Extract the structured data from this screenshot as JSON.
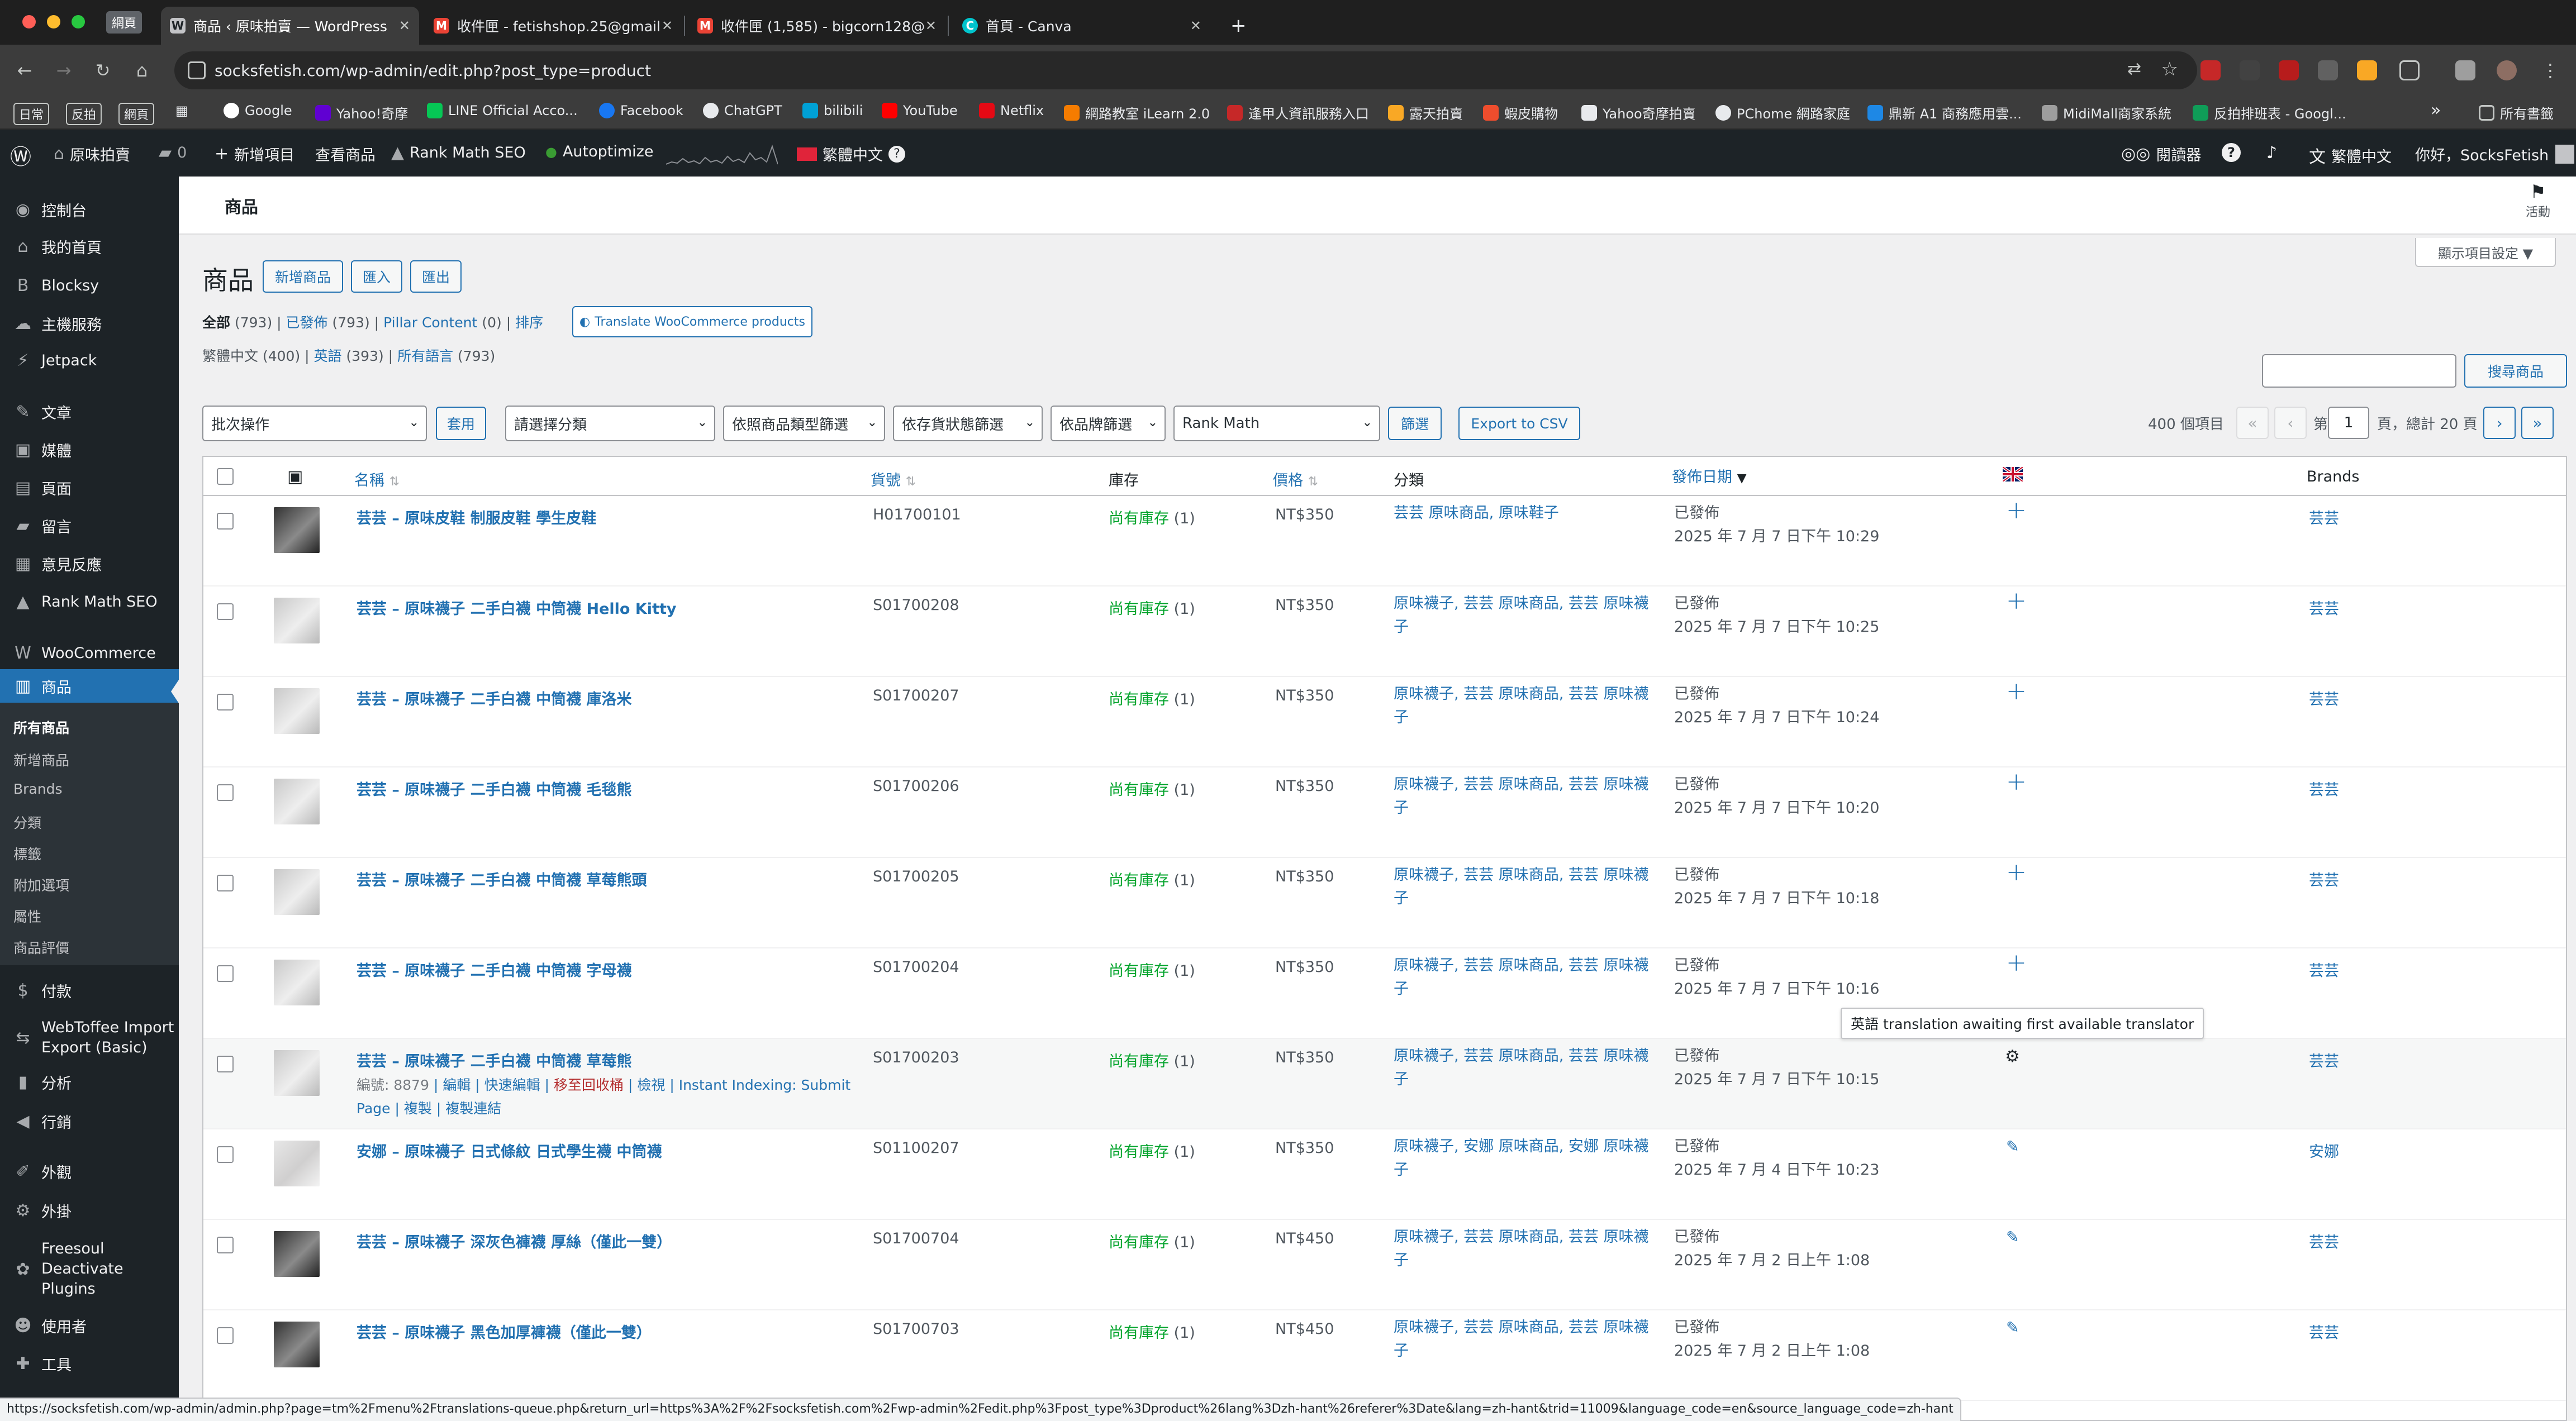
{
  "browser": {
    "traffic_colors": [
      "#ff5f57",
      "#febc2e",
      "#28c840"
    ],
    "profile_chip": "網頁",
    "tabs": [
      {
        "title": "商品 ‹ 原味拍賣 — WordPress",
        "active": true
      },
      {
        "title": "收件匣 - fetishshop.25@gmail",
        "active": false
      },
      {
        "title": "收件匣 (1,585) - bigcorn128@",
        "active": false
      },
      {
        "title": "首頁 - Canva",
        "active": false
      }
    ],
    "new_tab": "+",
    "url": "socksfetish.com/wp-admin/edit.php?post_type=product",
    "bookmark_chips": [
      "日常",
      "反拍",
      "網頁"
    ],
    "bookmarks": [
      "Google",
      "Yahoo!奇摩",
      "LINE Official Acco...",
      "Facebook",
      "ChatGPT",
      "bilibili",
      "YouTube",
      "Netflix",
      "網路教室 iLearn 2.0",
      "逢甲人資訊服務入口",
      "露天拍賣",
      "蝦皮購物",
      "Yahoo奇摩拍賣",
      "PChome 網路家庭",
      "鼎新 A1 商務應用雲...",
      "MidiMall商家系統",
      "反拍排班表 - Googl..."
    ],
    "bookmarks_more": "»",
    "all_bookmarks": "所有書籤",
    "status_url": "https://socksfetish.com/wp-admin/admin.php?page=tm%2Fmenu%2Ftranslations-queue.php&return_url=https%3A%2F%2Fsocksfetish.com%2Fwp-admin%2Fedit.php%3Fpost_type%3Dproduct%26lang%3Dzh-hant%26referer%3Date&lang=zh-hant&trid=11009&language_code=en&source_language_code=zh-hant"
  },
  "adminbar": {
    "site_name": "原味拍賣",
    "comments": "0",
    "new_item": "新增項目",
    "view_products": "查看商品",
    "rank_math": "Rank Math SEO",
    "autoptimize": "Autoptimize",
    "language": "繁體中文",
    "language_badge": "?",
    "reader": "閱讀器",
    "help": "?",
    "lang_right": "繁體中文",
    "greeting": "你好，SocksFetish"
  },
  "sidebar": {
    "items": [
      {
        "label": "控制台",
        "icon": "dashboard-icon",
        "glyph": "◉"
      },
      {
        "label": "我的首頁",
        "icon": "home-icon",
        "glyph": "⌂"
      },
      {
        "label": "Blocksy",
        "icon": "blocksy-icon",
        "glyph": "B"
      },
      {
        "label": "主機服務",
        "icon": "cloud-icon",
        "glyph": "☁"
      },
      {
        "label": "Jetpack",
        "icon": "jetpack-icon",
        "glyph": "⚡"
      },
      {
        "label": "文章",
        "icon": "pin-icon",
        "glyph": "✎"
      },
      {
        "label": "媒體",
        "icon": "media-icon",
        "glyph": "▣"
      },
      {
        "label": "頁面",
        "icon": "page-icon",
        "glyph": "▤"
      },
      {
        "label": "留言",
        "icon": "comment-icon",
        "glyph": "▰"
      },
      {
        "label": "意見反應",
        "icon": "feedback-icon",
        "glyph": "▦"
      },
      {
        "label": "Rank Math SEO",
        "icon": "rankmath-icon",
        "glyph": "▲"
      },
      {
        "label": "WooCommerce",
        "icon": "woocommerce-icon",
        "glyph": "W"
      },
      {
        "label": "商品",
        "icon": "product-icon",
        "glyph": "▥"
      },
      {
        "label": "付款",
        "icon": "payment-icon",
        "glyph": "$"
      },
      {
        "label": "WebToffee Import Export (Basic)",
        "icon": "import-export-icon",
        "glyph": "⇆"
      },
      {
        "label": "分析",
        "icon": "analytics-icon",
        "glyph": "▮"
      },
      {
        "label": "行銷",
        "icon": "megaphone-icon",
        "glyph": "◀"
      },
      {
        "label": "外觀",
        "icon": "brush-icon",
        "glyph": "✐"
      },
      {
        "label": "外掛",
        "icon": "plugin-icon",
        "glyph": "⚙"
      },
      {
        "label": "Freesoul Deactivate Plugins",
        "icon": "freesoul-icon",
        "glyph": "✿"
      },
      {
        "label": "使用者",
        "icon": "user-icon",
        "glyph": "☻"
      },
      {
        "label": "工具",
        "icon": "wrench-icon",
        "glyph": "✚"
      }
    ],
    "submenu": [
      "所有商品",
      "新增商品",
      "Brands",
      "分類",
      "標籤",
      "附加選項",
      "屬性",
      "商品評價"
    ]
  },
  "page": {
    "top_title": "商品",
    "activity": "活動",
    "screen_options": "顯示項目設定 ▼",
    "heading": "商品",
    "buttons": {
      "add": "新增商品",
      "import": "匯入",
      "export": "匯出"
    },
    "views": {
      "all": "全部",
      "all_count": "(793)",
      "published": "已發佈",
      "published_count": "(793)",
      "pillar": "Pillar Content",
      "pillar_count": "(0)",
      "sort": "排序",
      "translate_btn": "Translate WooCommerce products"
    },
    "langs": {
      "zh": "繁體中文",
      "zh_count": "(400)",
      "en": "英語",
      "en_count": "(393)",
      "all": "所有語言",
      "all_count": "(793)"
    },
    "search_button": "搜尋商品",
    "filters": {
      "bulk": "批次操作",
      "apply": "套用",
      "category": "請選擇分類",
      "type": "依照商品類型篩選",
      "stock": "依存貨狀態篩選",
      "brand": "依品牌篩選",
      "rankmath": "Rank Math",
      "filter_btn": "篩選",
      "export_csv": "Export to CSV"
    },
    "pagination": {
      "items": "400 個項目",
      "first": "«",
      "prev": "‹",
      "page_prefix": "第",
      "current": "1",
      "total": "頁，總計 20 頁",
      "next": "›",
      "last": "»"
    }
  },
  "table": {
    "columns": {
      "name": "名稱",
      "sku": "貨號",
      "stock": "庫存",
      "price": "價格",
      "category": "分類",
      "date": "發佈日期",
      "brands": "Brands"
    },
    "rows": [
      {
        "name": "芸芸 – 原味皮鞋 制服皮鞋 學生皮鞋",
        "sku": "H01700101",
        "stock": "尚有庫存",
        "stock_qty": "(1)",
        "price": "NT$350",
        "category": "芸芸 原味商品, 原味鞋子",
        "status": "已發佈",
        "date": "2025 年 7 月 7 日下午 10:29",
        "translation": "plus",
        "brand": "芸芸",
        "thumb": "dark",
        "actions": ""
      },
      {
        "name": "芸芸 – 原味襪子 二手白襪 中筒襪 Hello Kitty",
        "sku": "S01700208",
        "stock": "尚有庫存",
        "stock_qty": "(1)",
        "price": "NT$350",
        "category": "原味襪子, 芸芸 原味商品, 芸芸 原味襪子",
        "status": "已發佈",
        "date": "2025 年 7 月 7 日下午 10:25",
        "translation": "plus",
        "brand": "芸芸",
        "thumb": "mid",
        "actions": ""
      },
      {
        "name": "芸芸 – 原味襪子 二手白襪 中筒襪 庫洛米",
        "sku": "S01700207",
        "stock": "尚有庫存",
        "stock_qty": "(1)",
        "price": "NT$350",
        "category": "原味襪子, 芸芸 原味商品, 芸芸 原味襪子",
        "status": "已發佈",
        "date": "2025 年 7 月 7 日下午 10:24",
        "translation": "plus",
        "brand": "芸芸",
        "thumb": "mid",
        "actions": ""
      },
      {
        "name": "芸芸 – 原味襪子 二手白襪 中筒襪 毛毯熊",
        "sku": "S01700206",
        "stock": "尚有庫存",
        "stock_qty": "(1)",
        "price": "NT$350",
        "category": "原味襪子, 芸芸 原味商品, 芸芸 原味襪子",
        "status": "已發佈",
        "date": "2025 年 7 月 7 日下午 10:20",
        "translation": "plus",
        "brand": "芸芸",
        "thumb": "mid",
        "actions": ""
      },
      {
        "name": "芸芸 – 原味襪子 二手白襪 中筒襪 草莓熊頭",
        "sku": "S01700205",
        "stock": "尚有庫存",
        "stock_qty": "(1)",
        "price": "NT$350",
        "category": "原味襪子, 芸芸 原味商品, 芸芸 原味襪子",
        "status": "已發佈",
        "date": "2025 年 7 月 7 日下午 10:18",
        "translation": "plus",
        "brand": "芸芸",
        "thumb": "mid",
        "actions": ""
      },
      {
        "name": "芸芸 – 原味襪子 二手白襪 中筒襪 字母襪",
        "sku": "S01700204",
        "stock": "尚有庫存",
        "stock_qty": "(1)",
        "price": "NT$350",
        "category": "原味襪子, 芸芸 原味商品, 芸芸 原味襪子",
        "status": "已發佈",
        "date": "2025 年 7 月 7 日下午 10:16",
        "translation": "plus",
        "brand": "芸芸",
        "thumb": "mid",
        "actions": ""
      },
      {
        "name": "芸芸 – 原味襪子 二手白襪 中筒襪 草莓熊",
        "sku": "S01700203",
        "stock": "尚有庫存",
        "stock_qty": "(1)",
        "price": "NT$350",
        "category": "原味襪子, 芸芸 原味商品, 芸芸 原味襪子",
        "status": "已發佈",
        "date": "2025 年 7 月 7 日下午 10:15",
        "translation": "gear",
        "brand": "芸芸",
        "thumb": "mid",
        "actions": "show"
      },
      {
        "name": "安娜 – 原味襪子 日式條紋 日式學生襪 中筒襪",
        "sku": "S01100207",
        "stock": "尚有庫存",
        "stock_qty": "(1)",
        "price": "NT$350",
        "category": "原味襪子, 安娜 原味商品, 安娜 原味襪子",
        "status": "已發佈",
        "date": "2025 年 7 月 4 日下午 10:23",
        "translation": "pencil",
        "brand": "安娜",
        "thumb": "light",
        "actions": ""
      },
      {
        "name": "芸芸 – 原味襪子 深灰色褲襪 厚絲（僅此一雙）",
        "sku": "S01700704",
        "stock": "尚有庫存",
        "stock_qty": "(1)",
        "price": "NT$450",
        "category": "原味襪子, 芸芸 原味商品, 芸芸 原味襪子",
        "status": "已發佈",
        "date": "2025 年 7 月 2 日上午 1:08",
        "translation": "pencil",
        "brand": "芸芸",
        "thumb": "dark",
        "actions": ""
      },
      {
        "name": "芸芸 – 原味襪子 黑色加厚褲襪（僅此一雙）",
        "sku": "S01700703",
        "stock": "尚有庫存",
        "stock_qty": "(1)",
        "price": "NT$450",
        "category": "原味襪子, 芸芸 原味商品, 芸芸 原味襪子",
        "status": "已發佈",
        "date": "2025 年 7 月 2 日上午 1:08",
        "translation": "pencil",
        "brand": "芸芸",
        "thumb": "dark",
        "actions": ""
      }
    ],
    "row_actions": {
      "id": "編號: 8879",
      "edit": "編輯",
      "quick_edit": "快速編輯",
      "trash": "移至回收桶",
      "view": "檢視",
      "indexing": "Instant Indexing: Submit Page",
      "duplicate": "複製",
      "copy_link": "複製連結"
    },
    "tooltip": "英語 translation awaiting first available translator"
  },
  "colors": {
    "accent": "#2271b1",
    "admin_bar": "#1d2327",
    "instock": "#00a32a",
    "trash": "#b32d2e"
  }
}
